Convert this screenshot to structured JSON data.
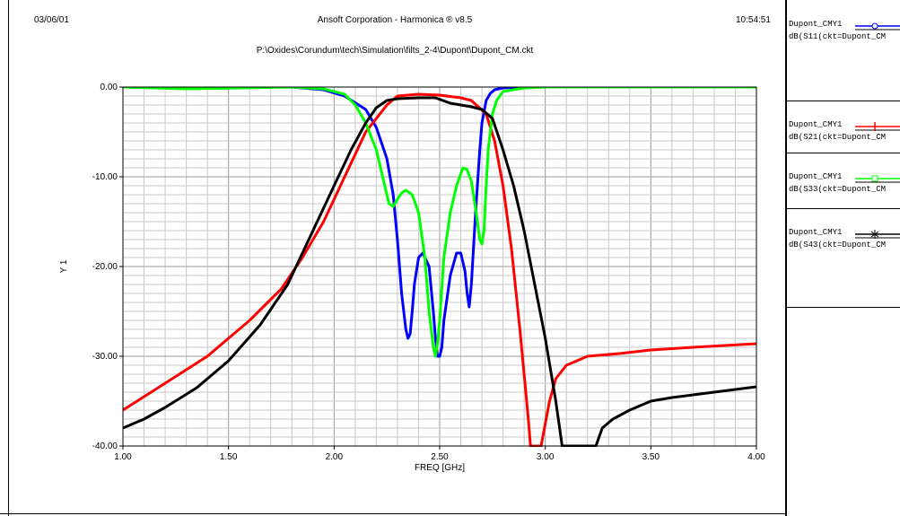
{
  "header": {
    "date": "03/06/01",
    "title": "Ansoft Corporation - Harmonica ® v8.5",
    "time": "10:54:51",
    "path": "P:\\Oxides\\Corundum\\tech\\Simulation\\filts_2-4\\Dupont\\Dupont_CM.ckt"
  },
  "legend": [
    {
      "line1": "Dupont_CMY1",
      "line2": "dB(S11(ckt=Dupont_CM",
      "color": "#0000ff",
      "marker": "circle-icon"
    },
    {
      "line1": "Dupont_CMY1",
      "line2": "dB(S21(ckt=Dupont_CM",
      "color": "#ff0000",
      "marker": "plus-icon"
    },
    {
      "line1": "Dupont_CMY1",
      "line2": "dB(S33(ckt=Dupont_CM",
      "color": "#00ff00",
      "marker": "square-icon"
    },
    {
      "line1": "Dupont_CMY1",
      "line2": "dB(S43(ckt=Dupont_CM",
      "color": "#000000",
      "marker": "asterisk-icon"
    }
  ],
  "chart_data": {
    "type": "line",
    "xlabel": "FREQ [GHz]",
    "ylabel": "Y 1",
    "xlim": [
      1.0,
      4.0
    ],
    "ylim": [
      -40,
      0
    ],
    "xticks": [
      "1.00",
      "1.50",
      "2.00",
      "2.50",
      "3.00",
      "3.50",
      "4.00"
    ],
    "yticks": [
      "0.00",
      "-10.00",
      "-20.00",
      "-30.00",
      "-40.00"
    ],
    "grid": true,
    "series": [
      {
        "name": "dB(S11)",
        "color": "#0000ff",
        "x": [
          1.0,
          1.8,
          1.95,
          2.05,
          2.15,
          2.2,
          2.25,
          2.28,
          2.3,
          2.32,
          2.34,
          2.35,
          2.36,
          2.37,
          2.38,
          2.4,
          2.42,
          2.45,
          2.47,
          2.48,
          2.49,
          2.5,
          2.51,
          2.52,
          2.55,
          2.58,
          2.6,
          2.62,
          2.63,
          2.64,
          2.65,
          2.67,
          2.69,
          2.7,
          2.72,
          2.74,
          2.76,
          2.8,
          2.9,
          3.05
        ],
        "y": [
          0,
          0,
          -0.3,
          -1,
          -2.5,
          -4.5,
          -8,
          -12,
          -17,
          -23,
          -27,
          -28,
          -27.5,
          -25,
          -22,
          -19,
          -18.5,
          -20,
          -25,
          -28,
          -30,
          -30,
          -29,
          -26,
          -21,
          -18.5,
          -18.5,
          -20.5,
          -23,
          -24.5,
          -22,
          -14,
          -7,
          -4,
          -1.5,
          -0.7,
          -0.3,
          -0.1,
          0,
          0
        ]
      },
      {
        "name": "dB(S21)",
        "color": "#ff0000",
        "x": [
          1.0,
          1.2,
          1.4,
          1.6,
          1.75,
          1.85,
          1.95,
          2.05,
          2.15,
          2.25,
          2.3,
          2.4,
          2.5,
          2.6,
          2.65,
          2.72,
          2.76,
          2.8,
          2.84,
          2.88,
          2.9,
          2.92,
          2.93,
          2.98,
          3.0,
          3.02,
          3.05,
          3.1,
          3.2,
          3.35,
          3.5,
          3.7,
          4.0
        ],
        "y": [
          -36,
          -33,
          -30,
          -26,
          -22.5,
          -19,
          -15,
          -10,
          -5,
          -2,
          -1,
          -0.8,
          -0.9,
          -1.2,
          -1.5,
          -3,
          -6,
          -11,
          -18,
          -27,
          -32,
          -37,
          -40,
          -40,
          -37.5,
          -35,
          -32.5,
          -31,
          -30,
          -29.7,
          -29.3,
          -29,
          -28.6
        ]
      },
      {
        "name": "dB(S33)",
        "color": "#00ff00",
        "x": [
          1.0,
          1.3,
          1.8,
          1.95,
          2.05,
          2.1,
          2.15,
          2.2,
          2.24,
          2.26,
          2.28,
          2.3,
          2.32,
          2.34,
          2.37,
          2.4,
          2.43,
          2.45,
          2.47,
          2.48,
          2.49,
          2.5,
          2.52,
          2.55,
          2.58,
          2.61,
          2.63,
          2.65,
          2.67,
          2.69,
          2.7,
          2.71,
          2.72,
          2.73,
          2.75,
          2.77,
          2.8,
          2.9,
          3.0,
          4.0
        ],
        "y": [
          0,
          -0.2,
          0,
          -0.2,
          -0.8,
          -2,
          -4,
          -7,
          -11,
          -13,
          -13.3,
          -12.5,
          -11.8,
          -11.5,
          -12,
          -14,
          -19,
          -25,
          -29,
          -30,
          -28.5,
          -26,
          -19,
          -14,
          -11,
          -9,
          -9.2,
          -10.5,
          -13.5,
          -17,
          -17.5,
          -16,
          -11,
          -7,
          -3,
          -1.5,
          -0.5,
          -0.1,
          0,
          0
        ]
      },
      {
        "name": "dB(S43)",
        "color": "#000000",
        "x": [
          1.0,
          1.1,
          1.2,
          1.35,
          1.5,
          1.65,
          1.78,
          1.9,
          2.0,
          2.08,
          2.15,
          2.2,
          2.25,
          2.3,
          2.4,
          2.48,
          2.55,
          2.6,
          2.65,
          2.7,
          2.75,
          2.8,
          2.85,
          2.9,
          2.95,
          3.0,
          3.05,
          3.08,
          3.24,
          3.27,
          3.32,
          3.4,
          3.5,
          3.6,
          3.7,
          3.8,
          3.9,
          4.0
        ],
        "y": [
          -38,
          -37,
          -35.7,
          -33.5,
          -30.5,
          -26.5,
          -22,
          -16,
          -11,
          -7,
          -4,
          -2.3,
          -1.5,
          -1.3,
          -1.2,
          -1.2,
          -1.8,
          -2,
          -2.2,
          -2.5,
          -3.5,
          -7,
          -11,
          -16,
          -22,
          -28,
          -35,
          -40,
          -40,
          -38,
          -37,
          -36,
          -35,
          -34.6,
          -34.3,
          -34,
          -33.7,
          -33.4
        ]
      }
    ]
  }
}
